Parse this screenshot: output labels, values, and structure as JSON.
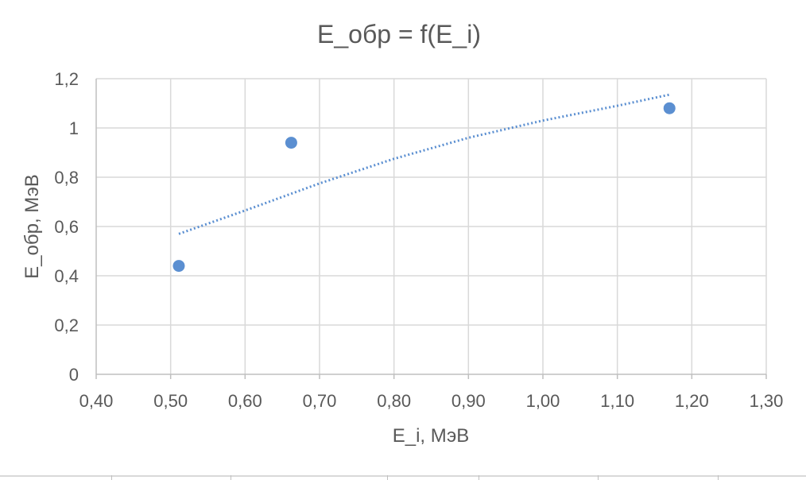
{
  "chart_data": {
    "type": "scatter",
    "title": "E_обр = f(E_i)",
    "xlabel": "E_i, МэВ",
    "ylabel": "E_обр, МэВ",
    "xlim": [
      0.4,
      1.3
    ],
    "ylim": [
      0,
      1.2
    ],
    "x_ticks": [
      "0,40",
      "0,50",
      "0,60",
      "0,70",
      "0,80",
      "0,90",
      "1,00",
      "1,10",
      "1,20",
      "1,30"
    ],
    "y_ticks": [
      "0",
      "0,2",
      "0,4",
      "0,6",
      "0,8",
      "1",
      "1,2"
    ],
    "x_tick_values": [
      0.4,
      0.5,
      0.6,
      0.7,
      0.8,
      0.9,
      1.0,
      1.1,
      1.2,
      1.3
    ],
    "y_tick_values": [
      0,
      0.2,
      0.4,
      0.6,
      0.8,
      1.0,
      1.2
    ],
    "grid": true,
    "series": [
      {
        "points": [
          {
            "x": 0.511,
            "y": 0.44
          },
          {
            "x": 0.662,
            "y": 0.94
          },
          {
            "x": 1.17,
            "y": 1.08
          }
        ],
        "color": "#5b8fd1"
      }
    ],
    "trendline": {
      "style": "dotted",
      "color": "#5b8fd1",
      "x_range": [
        0.511,
        1.17
      ],
      "points": [
        {
          "x": 0.511,
          "y": 0.57
        },
        {
          "x": 0.6,
          "y": 0.665
        },
        {
          "x": 0.7,
          "y": 0.775
        },
        {
          "x": 0.8,
          "y": 0.875
        },
        {
          "x": 0.9,
          "y": 0.96
        },
        {
          "x": 1.0,
          "y": 1.03
        },
        {
          "x": 1.1,
          "y": 1.09
        },
        {
          "x": 1.17,
          "y": 1.135
        }
      ]
    }
  }
}
